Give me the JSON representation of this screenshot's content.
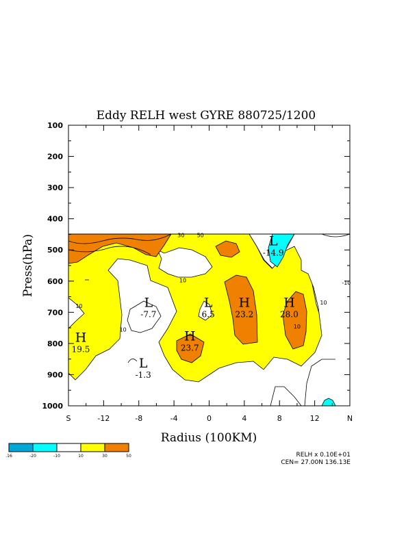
{
  "chart_data": {
    "type": "contour",
    "title": "Eddy RELH west GYRE 880725/1200",
    "xlabel": "Radius (100KM)",
    "ylabel": "Press(hPa)",
    "xlim": [
      -16,
      16
    ],
    "ylim": [
      1000,
      100
    ],
    "y_scale": "linear-inverted",
    "x_ticks": [
      {
        "value": -16,
        "label": "S"
      },
      {
        "value": -12,
        "label": "-12"
      },
      {
        "value": -8,
        "label": "-8"
      },
      {
        "value": -4,
        "label": "-4"
      },
      {
        "value": 0,
        "label": "0"
      },
      {
        "value": 4,
        "label": "4"
      },
      {
        "value": 8,
        "label": "8"
      },
      {
        "value": 12,
        "label": "12"
      },
      {
        "value": 16,
        "label": "N"
      }
    ],
    "y_ticks": [
      {
        "value": 100,
        "label": "100"
      },
      {
        "value": 200,
        "label": "200"
      },
      {
        "value": 300,
        "label": "300"
      },
      {
        "value": 400,
        "label": "400"
      },
      {
        "value": 500,
        "label": "500"
      },
      {
        "value": 600,
        "label": "600"
      },
      {
        "value": 700,
        "label": "700"
      },
      {
        "value": 800,
        "label": "800"
      },
      {
        "value": 900,
        "label": "900"
      },
      {
        "value": 1000,
        "label": "1000"
      }
    ],
    "data_top_pressure": 450,
    "contour_labels": [
      {
        "x": -3.2,
        "p": 452,
        "text": "30"
      },
      {
        "x": -1.0,
        "p": 452,
        "text": "50"
      },
      {
        "x": -3.0,
        "p": 597,
        "text": "10"
      },
      {
        "x": -14.8,
        "p": 680,
        "text": "10"
      },
      {
        "x": -9.8,
        "p": 755,
        "text": "10"
      },
      {
        "x": 10.0,
        "p": 745,
        "text": "10"
      },
      {
        "x": 13.0,
        "p": 668,
        "text": "10"
      },
      {
        "x": 15.6,
        "p": 605,
        "text": "-10"
      }
    ],
    "extrema": [
      {
        "type": "H",
        "x": -14.6,
        "p": 795,
        "value": "19.5"
      },
      {
        "type": "L",
        "x": -7.5,
        "p": 877,
        "value": "-1.3"
      },
      {
        "type": "L",
        "x": -6.9,
        "p": 683,
        "value": "-7.7"
      },
      {
        "type": "H",
        "x": -2.2,
        "p": 790,
        "value": "23.7"
      },
      {
        "type": "L",
        "x": -0.1,
        "p": 683,
        "value": "6.5"
      },
      {
        "type": "H",
        "x": 4.0,
        "p": 683,
        "value": "23.2"
      },
      {
        "type": "H",
        "x": 9.1,
        "p": 683,
        "value": "28.0"
      },
      {
        "type": "L",
        "x": 7.3,
        "p": 485,
        "value": "-14.9"
      }
    ],
    "legend": {
      "boundaries": [
        "-10",
        "10",
        "30",
        "50"
      ],
      "fill_colors": [
        "#00a8d8",
        "#00ffff",
        "#ffffff",
        "#ffff00",
        "#f08000"
      ],
      "edge_labels": [
        ".16",
        "-20",
        "-10",
        "10",
        "30",
        "50"
      ]
    },
    "colors": {
      "very_negative": "#00a8d8",
      "negative": "#00ffff",
      "neutral": "#ffffff",
      "positive": "#ffff00",
      "strong_positive": "#f08000"
    }
  },
  "footer": {
    "units_line": "RELH x  0.10E+01",
    "center_line": "CEN= 27.00N  136.13E"
  }
}
